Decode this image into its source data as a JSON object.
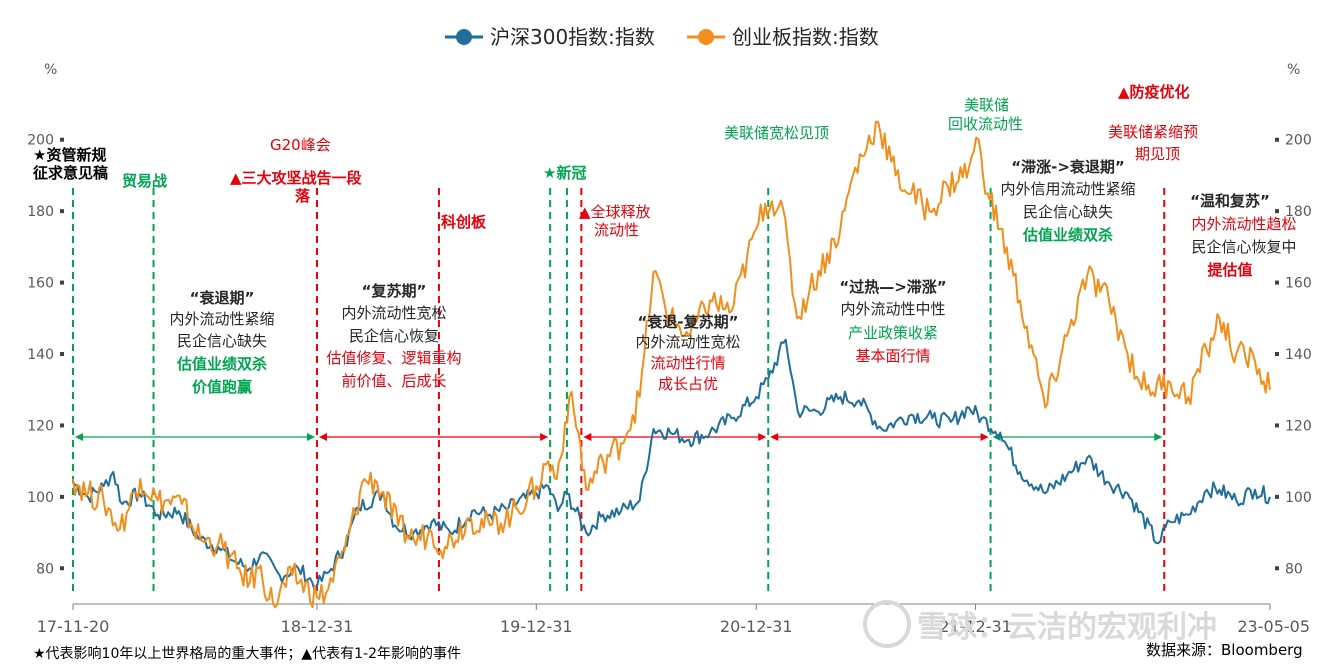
{
  "legend": {
    "series1": "沪深300指数:指数",
    "series2": "创业板指数:指数"
  },
  "colors": {
    "series1": "#1f6e9c",
    "series2": "#f28e1c",
    "green": "#00a550",
    "red": "#e8000b",
    "black": "#262626"
  },
  "axes": {
    "left_unit": "%",
    "right_unit": "%",
    "y_ticks": [
      "80",
      "100",
      "120",
      "140",
      "160",
      "180",
      "200"
    ],
    "x_ticks": [
      "17-11-20",
      "18-12-31",
      "19-12-31",
      "20-12-31",
      "21-12-31",
      "23-05-05"
    ]
  },
  "annotations": {
    "zgxg": "★资管新规",
    "zgxg2": "征求意见稿",
    "myz": "贸易战",
    "g20": "G20峰会",
    "sdgj1": "▲三大攻坚战告一段",
    "sdgj2": "落",
    "kcb": "科创板",
    "xg": "★新冠",
    "qqsf1": "▲全球释放",
    "qqsf2": "流动性",
    "fed_loose": "美联储宽松见顶",
    "fed_tight1": "美联储",
    "fed_tight2": "回收流动性",
    "fyyh": "▲防疫优化",
    "fed_peak1": "美联储紧缩预",
    "fed_peak2": "期见顶",
    "p1_t": "“衰退期”",
    "p1_l1": "内外流动性紧缩",
    "p1_l2": "民企信心缺失",
    "p1_l3": "估值业绩双杀",
    "p1_l4": "价值跑赢",
    "p2_t": "“复苏期”",
    "p2_l1": "内外流动性宽松",
    "p2_l2": "民企信心恢复",
    "p2_l3": "估值修复、逻辑重构",
    "p2_l4": "前价值、后成长",
    "p3_t": "“衰退-复苏期”",
    "p3_l1": "内外流动性宽松",
    "p3_l2": "流动性行情",
    "p3_l3": "成长占优",
    "p4_t": "“过热—>滞涨”",
    "p4_l1": "内外流动性中性",
    "p4_l2": "产业政策收紧",
    "p4_l3": "基本面行情",
    "p5_t": "“滞涨->衰退期”",
    "p5_l1": "内外信用流动性紧缩",
    "p5_l2": "民企信心缺失",
    "p5_l3": "估值业绩双杀",
    "p6_t": "“温和复苏”",
    "p6_l1": "内外流动性趋松",
    "p6_l2": "民企信心恢复中",
    "p6_l3": "提估值"
  },
  "footnote": "★代表影响10年以上世界格局的重大事件；▲代表有1-2年影响的事件",
  "source": "数据来源：Bloomberg",
  "watermark": "雪球：云洁的宏观利冲",
  "chart_data": {
    "type": "line",
    "y_unit": "%",
    "ylim": [
      70,
      210
    ],
    "x_start": "2017-11-20",
    "x_end": "2023-05-05",
    "x_ticks": [
      "17-11-20",
      "18-12-31",
      "19-12-31",
      "20-12-31",
      "21-12-31",
      "23-05-05"
    ],
    "series": [
      {
        "name": "沪深300指数:指数",
        "points": [
          [
            "2017-11-20",
            104
          ],
          [
            "2017-12-15",
            100
          ],
          [
            "2018-01-10",
            103
          ],
          [
            "2018-01-26",
            107
          ],
          [
            "2018-02-10",
            98
          ],
          [
            "2018-03-10",
            101
          ],
          [
            "2018-04-10",
            95
          ],
          [
            "2018-05-15",
            96
          ],
          [
            "2018-06-20",
            88
          ],
          [
            "2018-07-20",
            86
          ],
          [
            "2018-08-15",
            82
          ],
          [
            "2018-09-10",
            80
          ],
          [
            "2018-09-28",
            84
          ],
          [
            "2018-10-30",
            78
          ],
          [
            "2018-11-30",
            80
          ],
          [
            "2018-12-31",
            75
          ],
          [
            "2019-01-20",
            79
          ],
          [
            "2019-02-15",
            86
          ],
          [
            "2019-03-10",
            97
          ],
          [
            "2019-04-19",
            101
          ],
          [
            "2019-05-10",
            92
          ],
          [
            "2019-06-10",
            90
          ],
          [
            "2019-07-10",
            93
          ],
          [
            "2019-08-10",
            90
          ],
          [
            "2019-09-15",
            96
          ],
          [
            "2019-10-15",
            95
          ],
          [
            "2019-11-15",
            97
          ],
          [
            "2019-12-31",
            101
          ],
          [
            "2020-01-20",
            103
          ],
          [
            "2020-02-05",
            96
          ],
          [
            "2020-02-20",
            101
          ],
          [
            "2020-03-23",
            90
          ],
          [
            "2020-04-20",
            95
          ],
          [
            "2020-05-20",
            96
          ],
          [
            "2020-06-20",
            99
          ],
          [
            "2020-07-13",
            119
          ],
          [
            "2020-08-10",
            118
          ],
          [
            "2020-09-10",
            116
          ],
          [
            "2020-10-15",
            118
          ],
          [
            "2020-11-20",
            122
          ],
          [
            "2020-12-31",
            128
          ],
          [
            "2021-01-20",
            133
          ],
          [
            "2021-02-18",
            144
          ],
          [
            "2021-03-10",
            124
          ],
          [
            "2021-04-10",
            124
          ],
          [
            "2021-05-20",
            128
          ],
          [
            "2021-06-20",
            127
          ],
          [
            "2021-07-28",
            119
          ],
          [
            "2021-08-20",
            121
          ],
          [
            "2021-09-15",
            123
          ],
          [
            "2021-10-20",
            122
          ],
          [
            "2021-11-20",
            121
          ],
          [
            "2021-12-20",
            125
          ],
          [
            "2022-01-10",
            122
          ],
          [
            "2022-02-10",
            118
          ],
          [
            "2022-03-15",
            107
          ],
          [
            "2022-04-26",
            101
          ],
          [
            "2022-06-01",
            106
          ],
          [
            "2022-07-05",
            111
          ],
          [
            "2022-08-10",
            104
          ],
          [
            "2022-09-10",
            101
          ],
          [
            "2022-10-31",
            87
          ],
          [
            "2022-11-20",
            93
          ],
          [
            "2022-12-20",
            95
          ],
          [
            "2023-01-20",
            102
          ],
          [
            "2023-02-10",
            102
          ],
          [
            "2023-03-10",
            99
          ],
          [
            "2023-04-10",
            102
          ],
          [
            "2023-05-05",
            100
          ]
        ]
      },
      {
        "name": "创业板指数:指数",
        "points": [
          [
            "2017-11-20",
            105
          ],
          [
            "2017-12-15",
            101
          ],
          [
            "2018-01-10",
            99
          ],
          [
            "2018-02-06",
            91
          ],
          [
            "2018-03-12",
            105
          ],
          [
            "2018-04-10",
            99
          ],
          [
            "2018-05-20",
            98
          ],
          [
            "2018-06-20",
            88
          ],
          [
            "2018-07-20",
            87
          ],
          [
            "2018-08-20",
            80
          ],
          [
            "2018-09-10",
            76
          ],
          [
            "2018-09-25",
            80
          ],
          [
            "2018-10-19",
            70
          ],
          [
            "2018-11-20",
            78
          ],
          [
            "2018-12-31",
            72
          ],
          [
            "2019-01-15",
            73
          ],
          [
            "2019-02-15",
            85
          ],
          [
            "2019-03-20",
            105
          ],
          [
            "2019-04-10",
            104
          ],
          [
            "2019-05-15",
            92
          ],
          [
            "2019-06-10",
            88
          ],
          [
            "2019-07-10",
            90
          ],
          [
            "2019-08-01",
            86
          ],
          [
            "2019-09-10",
            94
          ],
          [
            "2019-10-15",
            92
          ],
          [
            "2019-11-20",
            95
          ],
          [
            "2019-12-31",
            103
          ],
          [
            "2020-01-20",
            110
          ],
          [
            "2020-02-03",
            105
          ],
          [
            "2020-02-24",
            128
          ],
          [
            "2020-03-10",
            118
          ],
          [
            "2020-03-23",
            102
          ],
          [
            "2020-04-20",
            110
          ],
          [
            "2020-05-20",
            115
          ],
          [
            "2020-06-20",
            128
          ],
          [
            "2020-07-13",
            163
          ],
          [
            "2020-08-10",
            150
          ],
          [
            "2020-09-10",
            145
          ],
          [
            "2020-10-15",
            155
          ],
          [
            "2020-11-20",
            152
          ],
          [
            "2020-12-31",
            175
          ],
          [
            "2021-01-15",
            182
          ],
          [
            "2021-02-10",
            183
          ],
          [
            "2021-03-09",
            150
          ],
          [
            "2021-03-30",
            158
          ],
          [
            "2021-05-20",
            175
          ],
          [
            "2021-06-10",
            190
          ],
          [
            "2021-07-22",
            205
          ],
          [
            "2021-08-20",
            190
          ],
          [
            "2021-09-15",
            185
          ],
          [
            "2021-10-15",
            180
          ],
          [
            "2021-11-15",
            187
          ],
          [
            "2021-12-20",
            192
          ],
          [
            "2022-01-05",
            200
          ],
          [
            "2022-01-20",
            185
          ],
          [
            "2022-02-10",
            175
          ],
          [
            "2022-03-15",
            155
          ],
          [
            "2022-04-26",
            125
          ],
          [
            "2022-06-01",
            145
          ],
          [
            "2022-07-05",
            162
          ],
          [
            "2022-08-10",
            155
          ],
          [
            "2022-09-10",
            140
          ],
          [
            "2022-10-11",
            130
          ],
          [
            "2022-11-20",
            132
          ],
          [
            "2022-12-20",
            128
          ],
          [
            "2023-01-20",
            141
          ],
          [
            "2023-02-10",
            150
          ],
          [
            "2023-03-10",
            140
          ],
          [
            "2023-04-10",
            138
          ],
          [
            "2023-05-05",
            130
          ]
        ]
      }
    ],
    "event_lines": [
      {
        "date": "2017-11-20",
        "color": "green"
      },
      {
        "date": "2018-04-03",
        "color": "green"
      },
      {
        "date": "2018-12-31",
        "color": "red"
      },
      {
        "date": "2019-07-22",
        "color": "red"
      },
      {
        "date": "2020-01-23",
        "color": "green"
      },
      {
        "date": "2020-02-20",
        "color": "green"
      },
      {
        "date": "2020-03-15",
        "color": "red"
      },
      {
        "date": "2021-01-20",
        "color": "green"
      },
      {
        "date": "2022-01-25",
        "color": "green"
      },
      {
        "date": "2022-11-10",
        "color": "red"
      }
    ],
    "period_arrows": [
      {
        "from": "2017-11-20",
        "to": "2018-12-31",
        "color": "green"
      },
      {
        "from": "2018-12-31",
        "to": "2020-01-23",
        "color": "red"
      },
      {
        "from": "2020-03-15",
        "to": "2021-01-20",
        "color": "red"
      },
      {
        "from": "2021-01-20",
        "to": "2022-01-25",
        "color": "red"
      },
      {
        "from": "2022-01-25",
        "to": "2022-11-10",
        "color": "green"
      }
    ]
  }
}
